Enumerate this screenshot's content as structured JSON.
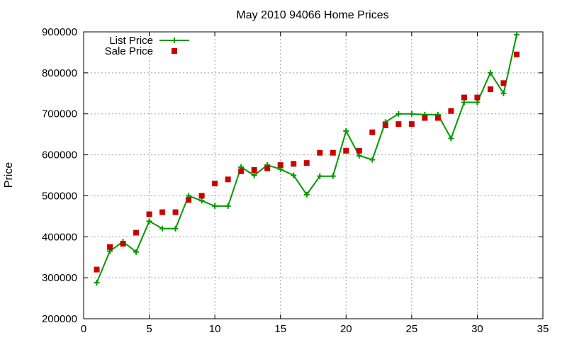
{
  "chart_data": {
    "type": "line",
    "title": "May 2010 94066 Home Prices",
    "xlabel": "",
    "ylabel": "Price",
    "xlim": [
      0,
      35
    ],
    "ylim": [
      200000,
      900000
    ],
    "xticks": [
      0,
      5,
      10,
      15,
      20,
      25,
      30,
      35
    ],
    "yticks": [
      200000,
      300000,
      400000,
      500000,
      600000,
      700000,
      800000,
      900000
    ],
    "x_tick_labels": [
      "0",
      "5",
      "10",
      "15",
      "20",
      "25",
      "30",
      "35"
    ],
    "y_tick_labels": [
      "200000",
      "300000",
      "400000",
      "500000",
      "600000",
      "700000",
      "800000",
      "900000"
    ],
    "grid": true,
    "legend_position": "top-left",
    "x": [
      1,
      2,
      3,
      4,
      5,
      6,
      7,
      8,
      9,
      10,
      11,
      12,
      13,
      14,
      15,
      16,
      17,
      18,
      19,
      20,
      21,
      22,
      23,
      24,
      25,
      26,
      27,
      28,
      29,
      30,
      31,
      32,
      33
    ],
    "series": [
      {
        "name": "List Price",
        "style": "line+plus",
        "color": "#009900",
        "values": [
          288000,
          365000,
          388000,
          363000,
          438000,
          420000,
          420000,
          500000,
          488000,
          475000,
          475000,
          570000,
          550000,
          575000,
          565000,
          550000,
          503000,
          548000,
          548000,
          658000,
          598000,
          588000,
          680000,
          700000,
          700000,
          698000,
          698000,
          640000,
          728000,
          728000,
          800000,
          750000,
          893000
        ]
      },
      {
        "name": "Sale Price",
        "style": "square-markers",
        "color": "#cc0000",
        "values": [
          320000,
          375000,
          383000,
          410000,
          455000,
          460000,
          460000,
          490000,
          500000,
          530000,
          540000,
          560000,
          563000,
          567000,
          575000,
          578000,
          580000,
          605000,
          605000,
          610000,
          610000,
          655000,
          672000,
          675000,
          675000,
          690000,
          690000,
          707000,
          740000,
          740000,
          760000,
          775000,
          845000
        ]
      }
    ]
  }
}
